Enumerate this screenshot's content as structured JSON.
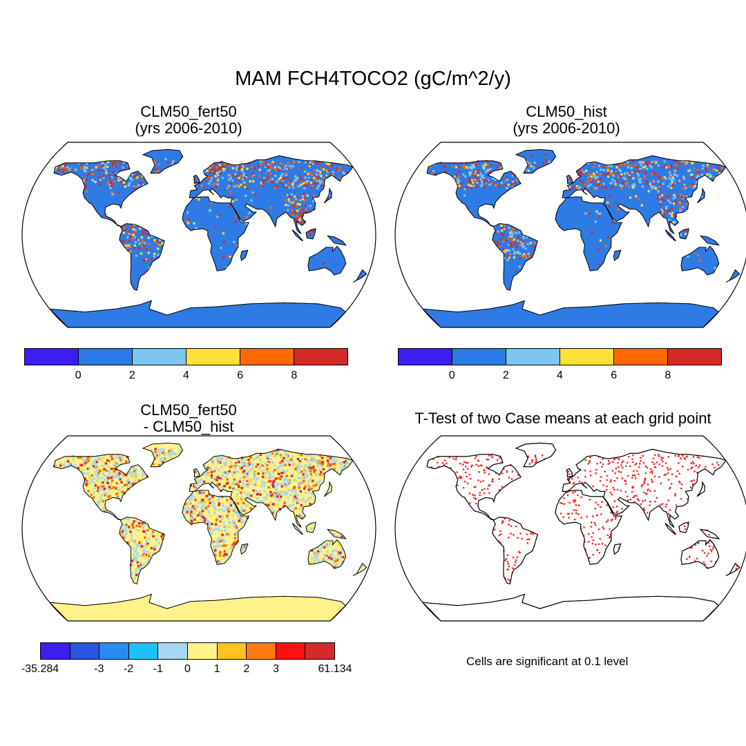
{
  "title": "MAM FCH4TOCO2 (gC/m^2/y)",
  "panels": [
    {
      "title_line1": "CLM50_fert50",
      "title_line2": "(yrs 2006-2010)"
    },
    {
      "title_line1": "CLM50_hist",
      "title_line2": "(yrs 2006-2010)"
    },
    {
      "title_line1": "CLM50_fert50",
      "title_line2": "- CLM50_hist"
    },
    {
      "title_line1": "T-Test of two Case means at each grid point"
    }
  ],
  "colorbar_abs": {
    "colors": [
      "#3b1ef0",
      "#2a7ae8",
      "#7cc6ef",
      "#fde03a",
      "#ff6a00",
      "#d42a2a"
    ],
    "ticks": [
      "0",
      "2",
      "4",
      "6",
      "8"
    ]
  },
  "colorbar_diff": {
    "colors": [
      "#3b1ef0",
      "#2a55e0",
      "#2a8aee",
      "#1ec0f5",
      "#a6d7f2",
      "#fff28a",
      "#ffc21e",
      "#ff7a10",
      "#ff1010",
      "#d42a2a"
    ],
    "ticks": [
      "-35.284",
      "-3",
      "-2",
      "-1",
      "0",
      "1",
      "2",
      "3",
      "61.134"
    ]
  },
  "significance_note": "Cells are significant at 0.1 level",
  "map_colors": {
    "land_abs": "#2f7be6",
    "land_diff": "#fff28a",
    "sig_dot": "#ff2020",
    "hot_red": "#d42a2a",
    "hot_orange": "#ff6a00",
    "hot_yellow": "#fde03a",
    "hot_light": "#7cc6ef",
    "diff_blue": "#a6d7f2"
  }
}
